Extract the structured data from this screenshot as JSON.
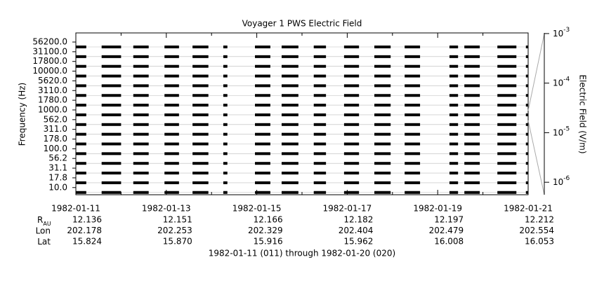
{
  "chart_data": {
    "type": "channel-coverage",
    "title": "Voyager 1 PWS Electric Field",
    "ylabel": "Frequency (Hz)",
    "y2label": "Electric Field (V/m)",
    "footer": "1982-01-11 (011) through 1982-01-20 (020)",
    "channels": [
      "56200.0",
      "31100.0",
      "17800.0",
      "10000.0",
      "5620.0",
      "3110.0",
      "1780.0",
      "1000.0",
      "562.0",
      "311.0",
      "178.0",
      "100.0",
      "56.2",
      "31.1",
      "17.8",
      "10.0"
    ],
    "color": "#000000",
    "xlim": [
      0,
      10
    ],
    "xticks": [
      {
        "value": 0,
        "label": "1982-01-11"
      },
      {
        "value": 2,
        "label": "1982-01-13"
      },
      {
        "value": 4,
        "label": "1982-01-15"
      },
      {
        "value": 6,
        "label": "1982-01-17"
      },
      {
        "value": 8,
        "label": "1982-01-19"
      },
      {
        "value": 10,
        "label": "1982-01-21"
      }
    ],
    "xminorticks": [
      1,
      3,
      5,
      7,
      9
    ],
    "coverage": [
      [
        0,
        0.23
      ],
      [
        0.57,
        1.0
      ],
      [
        1.27,
        1.61
      ],
      [
        1.96,
        2.28
      ],
      [
        2.58,
        2.93
      ],
      [
        3.26,
        3.35
      ],
      [
        3.96,
        4.3
      ],
      [
        4.55,
        4.92
      ],
      [
        5.26,
        5.53
      ],
      [
        5.93,
        6.26
      ],
      [
        6.6,
        6.96
      ],
      [
        7.27,
        7.61
      ],
      [
        8.26,
        8.45
      ],
      [
        8.59,
        8.93
      ],
      [
        9.32,
        9.74
      ],
      [
        9.95,
        10.0
      ]
    ],
    "y2log": true,
    "y2lim": [
      5.6e-07,
      0.00103
    ],
    "y2ticks": [
      {
        "value": 0.001,
        "label": "10",
        "exponent": "-3"
      },
      {
        "value": 0.0001,
        "label": "10",
        "exponent": "-4"
      },
      {
        "value": 1e-05,
        "label": "10",
        "exponent": "-5"
      },
      {
        "value": 1e-06,
        "label": "10",
        "exponent": "-6"
      }
    ],
    "ephemeris": [
      {
        "label": "R",
        "sub": "AU",
        "values": [
          "12.136",
          "12.151",
          "12.166",
          "12.182",
          "12.197",
          "12.212"
        ]
      },
      {
        "label": "Lon",
        "values": [
          "202.178",
          "202.253",
          "202.329",
          "202.404",
          "202.479",
          "202.554"
        ]
      },
      {
        "label": "Lat",
        "values": [
          "15.824",
          "15.870",
          "15.916",
          "15.962",
          "16.008",
          "16.053"
        ]
      }
    ]
  }
}
